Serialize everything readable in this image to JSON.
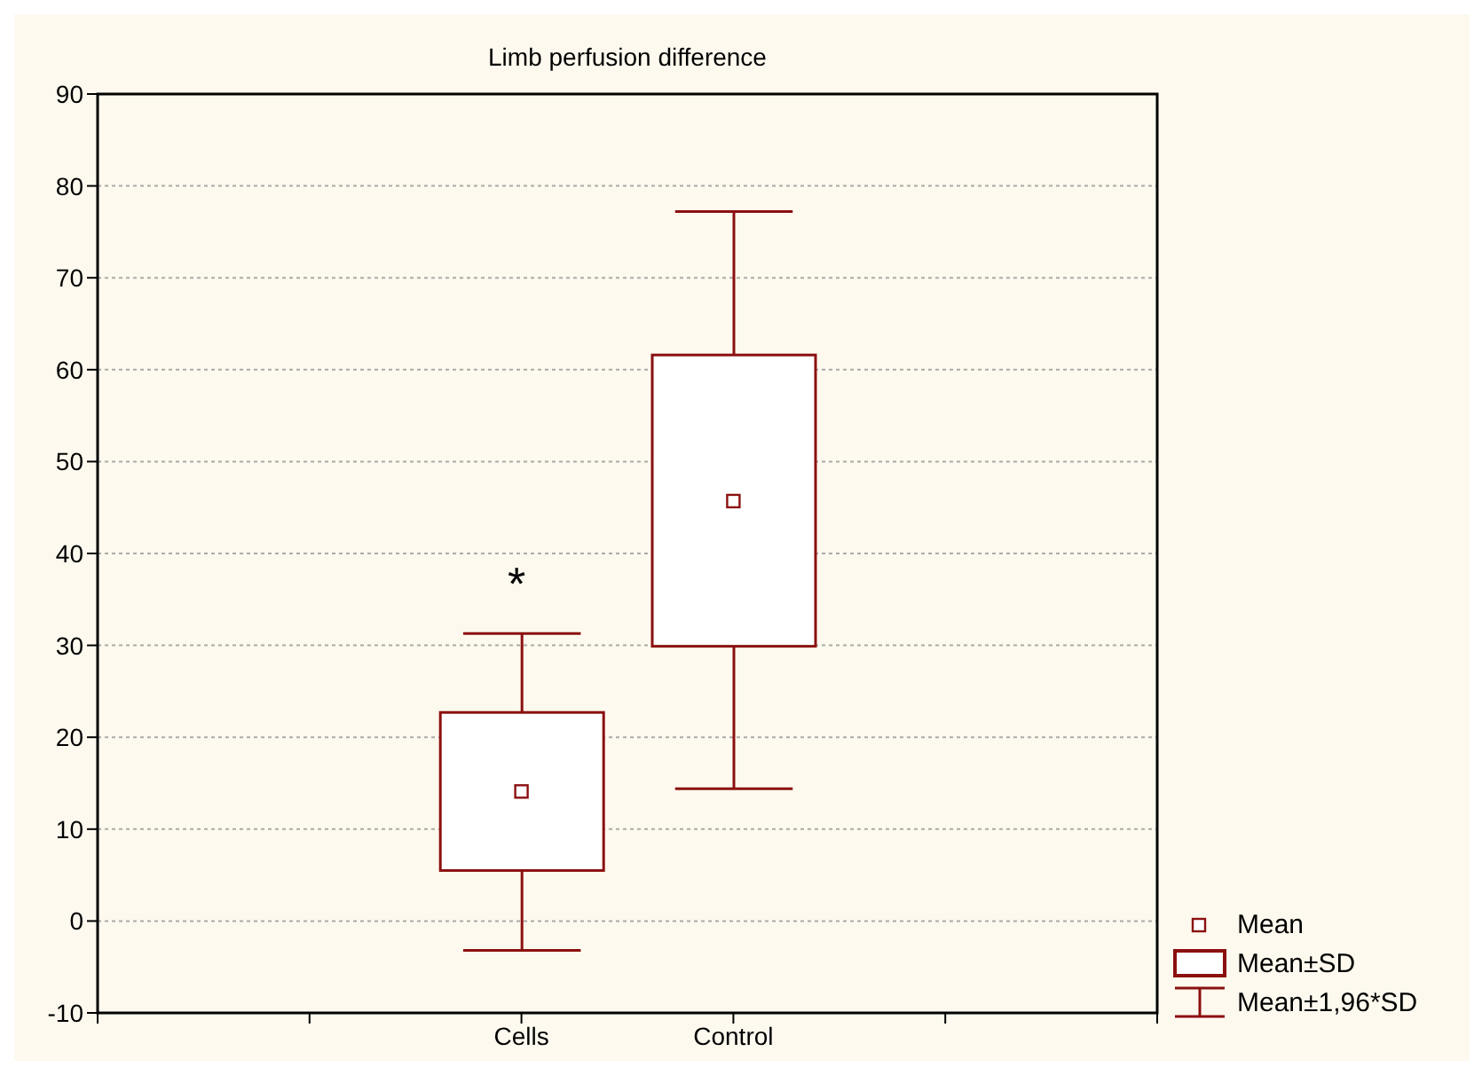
{
  "chart_data": {
    "type": "box",
    "title": "Limb perfusion difference",
    "categories": [
      null,
      "Cells",
      "Control",
      null
    ],
    "series": [
      {
        "color": "#8b1010",
        "boxes": [
          null,
          {
            "low": -3.2,
            "q1": 5.5,
            "median": null,
            "q3": 22.7,
            "high": 31.3,
            "mean": 14.1
          },
          {
            "low": 14.4,
            "q1": 29.9,
            "median": null,
            "q3": 61.6,
            "high": 77.2,
            "mean": 45.7
          },
          null
        ]
      }
    ],
    "ylim": [
      -10,
      90
    ],
    "yticks": [
      -10,
      0,
      10,
      20,
      30,
      40,
      50,
      60,
      70,
      80,
      90
    ],
    "grid": "y",
    "marker": "square",
    "annotations": [
      "*",
      "Mean",
      "Mean±SD",
      "Mean±1,96*SD"
    ]
  }
}
